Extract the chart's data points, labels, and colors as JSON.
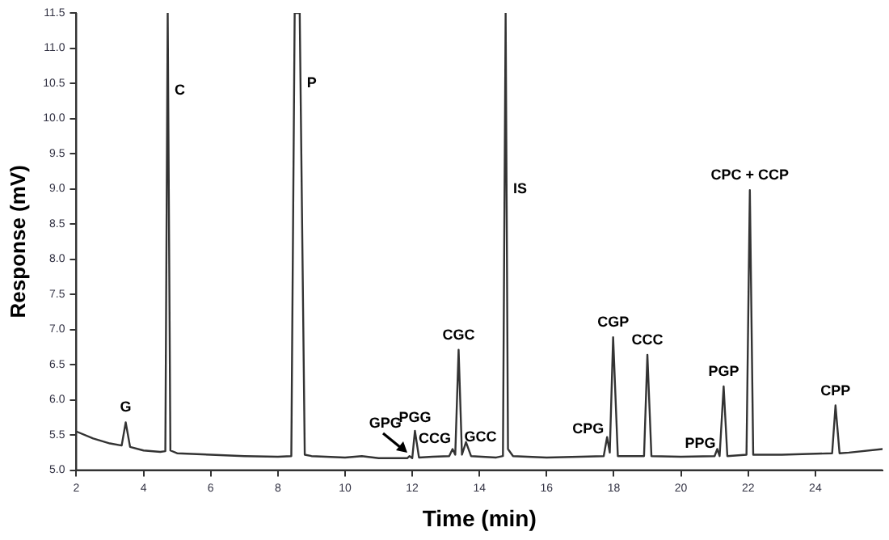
{
  "chart_data": {
    "type": "line",
    "xlabel": "Time (min)",
    "ylabel": "Response (mV)",
    "xlim": [
      2,
      26
    ],
    "xticks": [
      2,
      4,
      6,
      8,
      10,
      12,
      14,
      16,
      18,
      20,
      22,
      24
    ],
    "ylim": [
      5,
      11.5
    ],
    "yticks": [
      {
        "value": 5,
        "label": "5.0"
      },
      {
        "value": 5.5,
        "label": "5.5"
      },
      {
        "value": 6,
        "label": "6.0"
      },
      {
        "value": 6.5,
        "label": "6.5"
      },
      {
        "value": 7,
        "label": "7.0"
      },
      {
        "value": 7.5,
        "label": "7.5"
      },
      {
        "value": 8,
        "label": "8.0"
      },
      {
        "value": 8.5,
        "label": "8.5"
      },
      {
        "value": 9,
        "label": "9.0"
      },
      {
        "value": 9.5,
        "label": "9.5"
      },
      {
        "value": 10,
        "label": "10.0"
      },
      {
        "value": 10.5,
        "label": "10.5"
      },
      {
        "value": 11,
        "label": "11.0"
      },
      {
        "value": 11.5,
        "label": "11.5"
      }
    ],
    "grid": false,
    "legend": false,
    "marker": "none",
    "line_style": "solid",
    "x": [
      2.0,
      2.5,
      3.0,
      3.35,
      3.47,
      3.6,
      4.0,
      4.5,
      4.65,
      4.72,
      4.8,
      5.0,
      6.0,
      7.0,
      8.0,
      8.4,
      8.5,
      8.57,
      8.65,
      8.8,
      9.0,
      10.0,
      10.5,
      11.0,
      11.85,
      11.92,
      12.0,
      12.08,
      12.2,
      12.6,
      13.1,
      13.2,
      13.28,
      13.38,
      13.48,
      13.6,
      13.75,
      14.5,
      14.7,
      14.78,
      14.85,
      15.0,
      16.0,
      17.0,
      17.7,
      17.8,
      17.88,
      17.98,
      18.12,
      18.9,
      19.0,
      19.12,
      20.0,
      21.0,
      21.08,
      21.15,
      21.27,
      21.38,
      21.95,
      22.05,
      22.15,
      23.0,
      24.5,
      24.6,
      24.72,
      25.0,
      26.0
    ],
    "values": [
      5.55,
      5.45,
      5.38,
      5.35,
      5.68,
      5.33,
      5.28,
      5.26,
      5.27,
      11.5,
      5.28,
      5.24,
      5.22,
      5.2,
      5.19,
      5.2,
      11.5,
      11.5,
      11.5,
      5.22,
      5.2,
      5.18,
      5.2,
      5.17,
      5.17,
      5.2,
      5.17,
      5.56,
      5.18,
      5.19,
      5.2,
      5.3,
      5.22,
      6.71,
      5.22,
      5.4,
      5.2,
      5.18,
      5.2,
      11.5,
      5.3,
      5.2,
      5.18,
      5.19,
      5.2,
      5.47,
      5.25,
      6.89,
      5.2,
      5.2,
      6.64,
      5.2,
      5.19,
      5.2,
      5.3,
      5.2,
      6.19,
      5.2,
      5.22,
      8.98,
      5.22,
      5.22,
      5.24,
      5.92,
      5.24,
      5.25,
      5.3
    ],
    "color": "#333333",
    "annotations": [
      {
        "text": "G",
        "x": 3.47,
        "y": 5.68
      },
      {
        "text": "C",
        "x": 4.73,
        "y": 10.4
      },
      {
        "text": "P",
        "x": 8.67,
        "y": 10.5
      },
      {
        "text": "GPG",
        "x": 11.92,
        "y": 5.2
      },
      {
        "text": "PGG",
        "x": 12.08,
        "y": 5.56
      },
      {
        "text": "CCG",
        "x": 13.2,
        "y": 5.3
      },
      {
        "text": "GCC",
        "x": 13.6,
        "y": 5.4
      },
      {
        "text": "CGC",
        "x": 13.38,
        "y": 6.71
      },
      {
        "text": "IS",
        "x": 14.81,
        "y": 9.0
      },
      {
        "text": "CPG",
        "x": 17.8,
        "y": 5.47
      },
      {
        "text": "CGP",
        "x": 17.98,
        "y": 6.89
      },
      {
        "text": "CCC",
        "x": 19.0,
        "y": 6.64
      },
      {
        "text": "PPG",
        "x": 21.08,
        "y": 5.3
      },
      {
        "text": "PGP",
        "x": 21.27,
        "y": 6.19
      },
      {
        "text": "CPC + CCP",
        "x": 22.05,
        "y": 8.98
      },
      {
        "text": "CPP",
        "x": 24.6,
        "y": 5.92
      }
    ]
  }
}
